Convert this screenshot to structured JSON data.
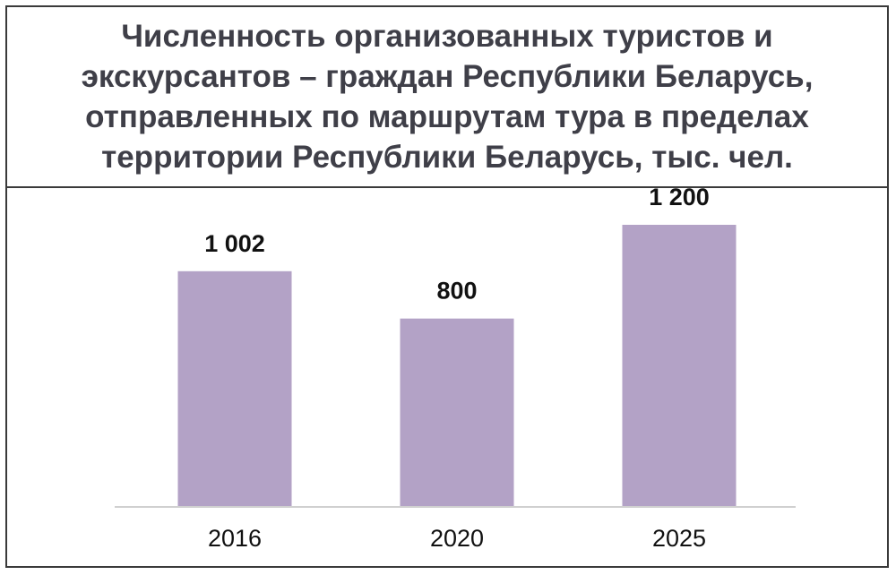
{
  "chart_data": {
    "type": "bar",
    "title": "Численность организованных туристов и экскурсантов – граждан Республики Беларусь, отправленных по маршрутам тура в пределах территории Республики Беларусь, тыс. чел.",
    "categories": [
      "2016",
      "2020",
      "2025"
    ],
    "values": [
      1002,
      800,
      1200
    ],
    "value_labels": [
      "1 002",
      "800",
      "1 200"
    ],
    "xlabel": "",
    "ylabel": "",
    "ylim": [
      0,
      1200
    ],
    "grid": false,
    "legend": "none",
    "bar_color": "#b3a2c6",
    "axis_color": "#d0d0d0"
  }
}
